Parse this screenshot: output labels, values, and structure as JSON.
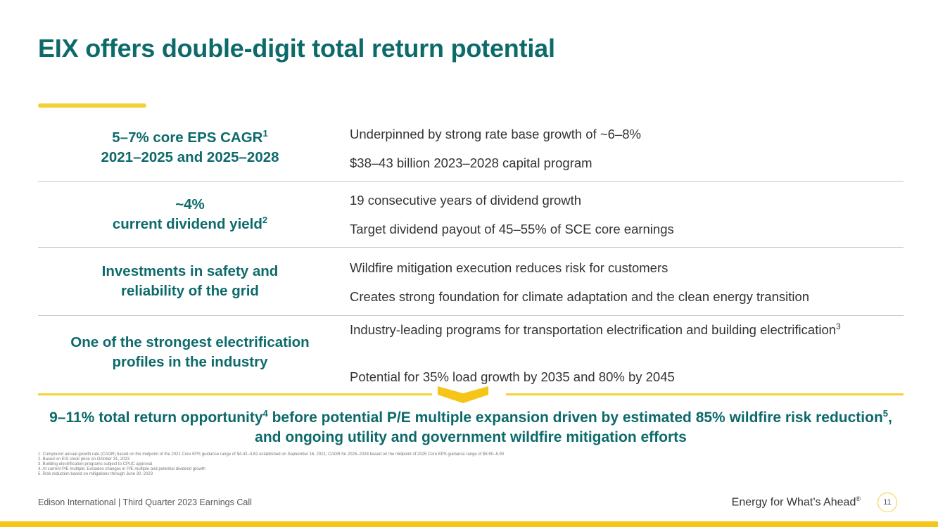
{
  "slide": {
    "title": "EIX offers double-digit total return potential"
  },
  "rows": [
    {
      "left_lines": [
        {
          "text": "5–7% core EPS CAGR",
          "sup": "1"
        },
        {
          "text": "2021–2025 and 2025–2028",
          "sup": ""
        }
      ],
      "items": [
        {
          "text": "Underpinned by strong rate base growth of ~6–8%",
          "sup": ""
        },
        {
          "text": "$38–43 billion 2023–2028 capital program",
          "sup": ""
        }
      ]
    },
    {
      "left_lines": [
        {
          "text": "~4%",
          "sup": ""
        },
        {
          "text": "current dividend yield",
          "sup": "2"
        }
      ],
      "items": [
        {
          "text": "19 consecutive years of dividend growth",
          "sup": ""
        },
        {
          "text": "Target dividend payout of 45–55% of SCE core earnings",
          "sup": ""
        }
      ]
    },
    {
      "left_lines": [
        {
          "text": "Investments in safety and",
          "sup": ""
        },
        {
          "text": "reliability of the grid",
          "sup": ""
        }
      ],
      "items": [
        {
          "text": "Wildfire mitigation execution reduces risk for customers",
          "sup": ""
        },
        {
          "text": "Creates strong foundation for climate adaptation and the clean energy transition",
          "sup": ""
        }
      ]
    },
    {
      "left_lines": [
        {
          "text": "One of the strongest electrification",
          "sup": ""
        },
        {
          "text": "profiles in the industry",
          "sup": ""
        }
      ],
      "items": [
        {
          "text": "Industry-leading programs for transportation electrification and building electrification",
          "sup": "3"
        },
        {
          "text": "Potential for 35% load growth by 2035 and 80% by 2045",
          "sup": ""
        }
      ]
    }
  ],
  "summary": {
    "part1": "9–11% total return opportunity",
    "sup1": "4",
    "part2": " before potential P/E multiple expansion driven by estimated 85% wildfire risk reduction",
    "sup2": "5",
    "part3": ", and ongoing utility and government wildfire mitigation efforts"
  },
  "footnotes": [
    "1.  Compound annual growth rate (CAGR) based on the midpoint of the 2021 Core EPS guidance range of $4.42–4.62 established on September 16, 2021; CAGR for 2025–2028 based on the midpoint of 2025 Core EPS guidance range of $5.50–5.90",
    "2.  Based on EIX stock price on October 31, 2023",
    "3.  Building electrification programs subject to CPUC approval",
    "4.  At current P/E multiple. Excludes changes in P/E multiple and potential dividend growth",
    "5.  Risk reduction based on mitigations through June 30, 2023"
  ],
  "footer": {
    "left": "Edison International |  Third Quarter 2023 Earnings Call",
    "tagline": "Energy for What’s Ahead",
    "tagline_mark": "®",
    "page_number": "11"
  },
  "colors": {
    "primary_teal": "#0d6a6b",
    "accent_yellow": "#f5d139",
    "bar_yellow": "#f5c518"
  }
}
